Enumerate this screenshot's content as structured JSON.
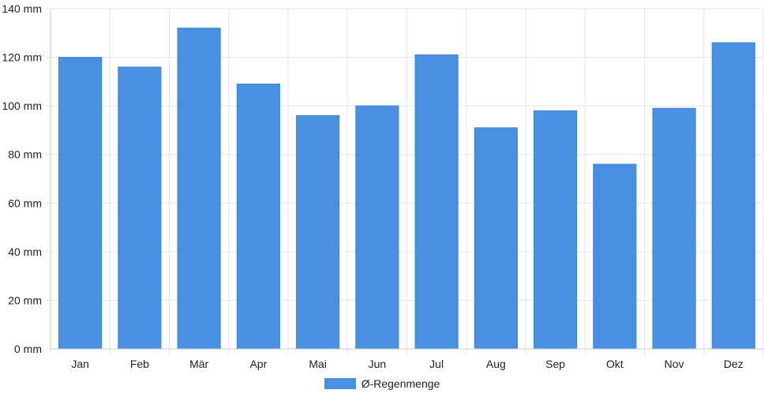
{
  "chart_data": {
    "type": "bar",
    "categories": [
      "Jan",
      "Feb",
      "Mär",
      "Apr",
      "Mai",
      "Jun",
      "Jul",
      "Aug",
      "Sep",
      "Okt",
      "Nov",
      "Dez"
    ],
    "series": [
      {
        "name": "Ø-Regenmenge",
        "values": [
          120,
          116,
          132,
          109,
          96,
          100,
          121,
          91,
          98,
          76,
          99,
          126
        ],
        "color": "#4a90e2"
      }
    ],
    "ylim": [
      0,
      140
    ],
    "yticks": [
      0,
      20,
      40,
      60,
      80,
      100,
      120,
      140
    ],
    "y_unit": "mm",
    "grid": true,
    "legend_position": "bottom-center"
  }
}
